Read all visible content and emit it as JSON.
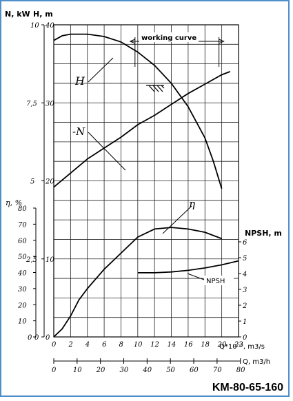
{
  "figure_id": "KM-80-65-160",
  "chart_data": {
    "type": "line",
    "title": "",
    "x_axes": {
      "flow_ls": {
        "label": "Q*10⁻³, m3/s",
        "min": 0,
        "max": 22,
        "ticks": [
          0,
          2,
          4,
          6,
          8,
          10,
          12,
          14,
          16,
          18,
          20,
          22
        ]
      },
      "flow_m3h": {
        "label": "Q, m3/h",
        "min": 0,
        "max": 80,
        "ticks": [
          0,
          10,
          20,
          30,
          40,
          50,
          60,
          70,
          80
        ]
      }
    },
    "y_axes": {
      "N": {
        "label": "N, kW",
        "min": 0,
        "max": 10,
        "ticks": [
          "0",
          "2,5",
          "5",
          "7,5",
          "10"
        ],
        "tick_values": [
          0,
          2.5,
          5,
          7.5,
          10
        ]
      },
      "H": {
        "label": "H, m",
        "min": 0,
        "max": 40,
        "ticks": [
          0,
          10,
          20,
          30,
          40
        ]
      },
      "eta": {
        "label": "η, %",
        "min": 0,
        "max": 80,
        "ticks": [
          0,
          10,
          20,
          30,
          40,
          50,
          60,
          70,
          80
        ]
      },
      "NPSH": {
        "label": "NPSH, m",
        "min": 0,
        "max": 6,
        "ticks": [
          0,
          1,
          2,
          3,
          4,
          5,
          6
        ]
      }
    },
    "series": [
      {
        "name": "H",
        "axis": "H",
        "x": [
          0,
          1,
          2,
          4,
          6,
          8,
          10,
          12,
          14,
          16,
          18,
          19,
          20
        ],
        "y": [
          38,
          38.6,
          38.8,
          38.8,
          38.5,
          37.8,
          36.5,
          34.8,
          32.5,
          29.5,
          25.5,
          22.5,
          19
        ]
      },
      {
        "name": "N",
        "axis": "N",
        "x": [
          0,
          2,
          4,
          6,
          8,
          10,
          12,
          14,
          16,
          18,
          20,
          21
        ],
        "y": [
          4.8,
          5.25,
          5.7,
          6.05,
          6.4,
          6.8,
          7.1,
          7.45,
          7.8,
          8.1,
          8.4,
          8.5
        ]
      },
      {
        "name": "η",
        "axis": "eta",
        "x": [
          0,
          1,
          2,
          3,
          4,
          6,
          8,
          10,
          12,
          14,
          16,
          18,
          20
        ],
        "y": [
          0,
          5,
          13,
          23,
          30,
          42,
          52,
          62,
          67,
          68,
          67,
          65,
          61
        ]
      },
      {
        "name": "NPSH",
        "axis": "NPSH",
        "x": [
          10,
          12,
          14,
          16,
          18,
          20,
          22
        ],
        "y": [
          4.05,
          4.05,
          4.1,
          4.2,
          4.35,
          4.55,
          4.8
        ]
      }
    ],
    "curve_labels": [
      "H",
      "-N",
      "η",
      "NPSH"
    ],
    "annotations": {
      "working_curve": {
        "label": "working curve",
        "x_range": [
          10,
          20
        ]
      }
    },
    "grid": true
  }
}
